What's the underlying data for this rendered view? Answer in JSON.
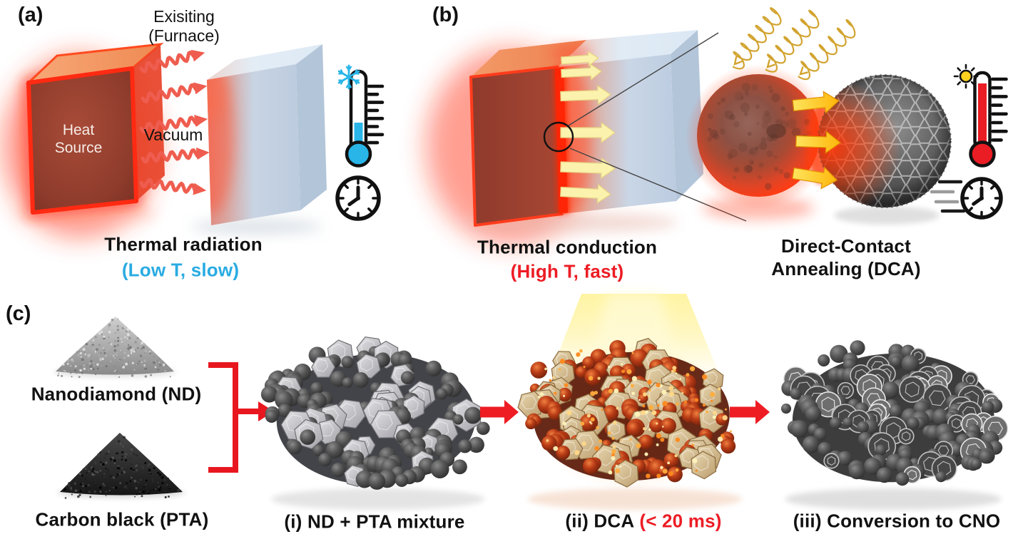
{
  "panels": {
    "a": {
      "label": "(a)",
      "furnace_line1": "Exisiting",
      "furnace_line2": "(Furnace)",
      "heat_line1": "Heat",
      "heat_line2": "Source",
      "vacuum": "Vacuum",
      "caption": "Thermal radiation",
      "subcaption": "(Low T, slow)"
    },
    "b": {
      "label": "(b)",
      "caption": "Thermal conduction",
      "subcaption": "(High T, fast)",
      "dca_line1": "Direct-Contact",
      "dca_line2": "Annealing (DCA)"
    },
    "c": {
      "label": "(c)",
      "powder_top_label": "Nanodiamond (ND)",
      "powder_bottom_label": "Carbon black (PTA)",
      "step_i": "(i) ND + PTA mixture",
      "step_ii_prefix": "(ii) DCA",
      "step_ii_highlight": "(< 20 ms)",
      "step_iii": "(iii) Conversion to CNO"
    }
  },
  "colors": {
    "cool_accent": "#29abe2",
    "hot_accent": "#ed1c24",
    "process_arrow_red": "#ee1c23",
    "radiation_arrow_salmon": "#ee5d4f",
    "conduction_arrow_pale_yellow": "#fbf2ad",
    "spring_gold": "#d2a430",
    "mercury_cold": "#29b5e8",
    "mercury_hot": "#ea1c24"
  },
  "icons": {
    "cold_thermometer": "thermometer-snowflake-icon",
    "slow_clock": "clock-icon",
    "hot_thermometer": "thermometer-sun-icon",
    "fast_clock": "fast-clock-icon",
    "snowflake": "snowflake-icon",
    "sun": "sun-icon"
  }
}
